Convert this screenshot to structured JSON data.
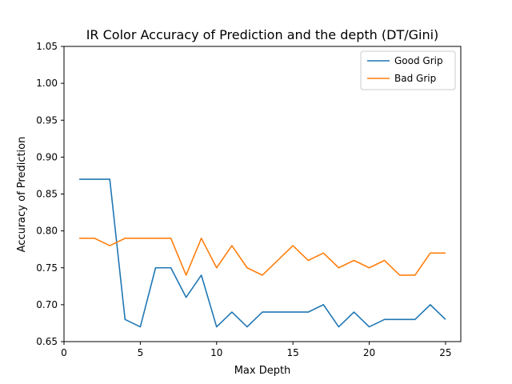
{
  "chart_data": {
    "type": "line",
    "title": "IR Color Accuracy of Prediction and the depth (DT/Gini)",
    "xlabel": "Max Depth",
    "ylabel": "Accuracy of Prediction",
    "xlim": [
      0,
      26
    ],
    "ylim": [
      0.65,
      1.05
    ],
    "xticks": [
      0,
      5,
      10,
      15,
      20,
      25
    ],
    "xtick_labels": [
      "0",
      "5",
      "10",
      "15",
      "20",
      "25"
    ],
    "yticks": [
      0.65,
      0.7,
      0.75,
      0.8,
      0.85,
      0.9,
      0.95,
      1.0,
      1.05
    ],
    "ytick_labels": [
      "0.65",
      "0.70",
      "0.75",
      "0.80",
      "0.85",
      "0.90",
      "0.95",
      "1.00",
      "1.05"
    ],
    "grid": false,
    "legend_position": "top-right",
    "x": [
      1,
      2,
      3,
      4,
      5,
      6,
      7,
      8,
      9,
      10,
      11,
      12,
      13,
      14,
      15,
      16,
      17,
      18,
      19,
      20,
      21,
      22,
      23,
      24,
      25
    ],
    "series": [
      {
        "name": "Good Grip",
        "color": "#1f77b4",
        "values": [
          0.87,
          0.87,
          0.87,
          0.68,
          0.67,
          0.75,
          0.75,
          0.71,
          0.74,
          0.67,
          0.69,
          0.67,
          0.69,
          0.69,
          0.69,
          0.69,
          0.7,
          0.67,
          0.69,
          0.67,
          0.68,
          0.68,
          0.68,
          0.7,
          0.68
        ]
      },
      {
        "name": "Bad Grip",
        "color": "#ff7f0e",
        "values": [
          0.79,
          0.79,
          0.78,
          0.79,
          0.79,
          0.79,
          0.79,
          0.74,
          0.79,
          0.75,
          0.78,
          0.75,
          0.74,
          0.76,
          0.78,
          0.76,
          0.77,
          0.75,
          0.76,
          0.75,
          0.76,
          0.74,
          0.74,
          0.77,
          0.77
        ]
      }
    ]
  }
}
